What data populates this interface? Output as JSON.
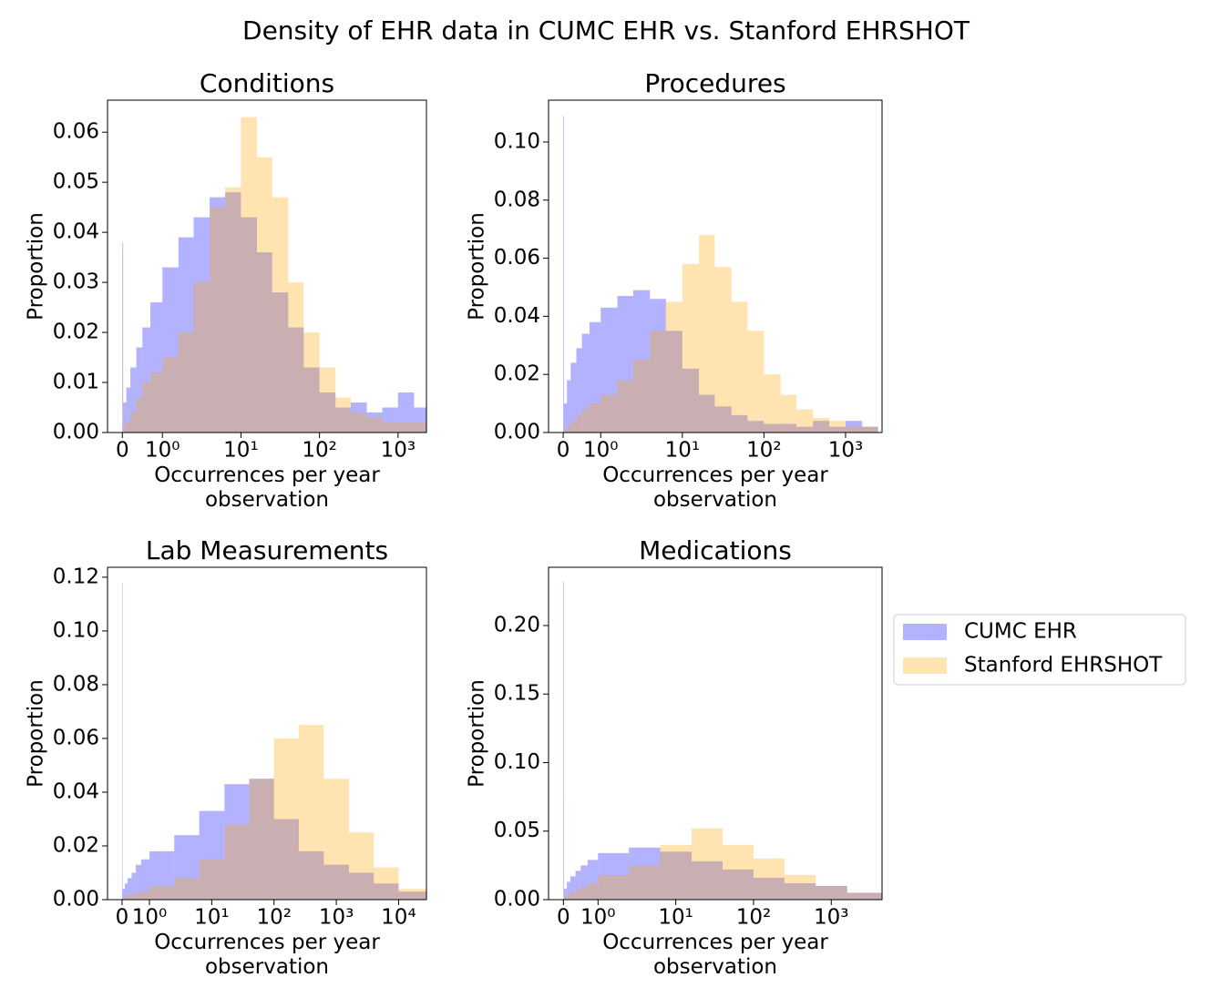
{
  "title": "Density of EHR data in CUMC EHR vs. Stanford EHRSHOT",
  "legend_position": "right",
  "chart_data": [
    {
      "type": "histogram",
      "title": "Conditions",
      "xlabel": "Occurrences per year\nobservation",
      "ylabel": "Proportion",
      "xscale": "symlog",
      "linthresh": 1,
      "linscale": 0.51,
      "xlim": [
        -0.37,
        2300
      ],
      "ylim": [
        0,
        0.0664
      ],
      "xticks": [
        0,
        {
          "value": 1,
          "label": "10⁰"
        },
        {
          "value": 10,
          "label": "10¹"
        },
        {
          "value": 100,
          "label": "10²"
        },
        {
          "value": 1000,
          "label": "10³"
        }
      ],
      "yticks": [
        {
          "value": 0,
          "label": "0.00"
        },
        {
          "value": 0.01,
          "label": "0.01"
        },
        {
          "value": 0.02,
          "label": "0.02"
        },
        {
          "value": 0.03,
          "label": "0.03"
        },
        {
          "value": 0.04,
          "label": "0.04"
        },
        {
          "value": 0.05,
          "label": "0.05"
        },
        {
          "value": 0.06,
          "label": "0.06"
        }
      ],
      "bins": [
        0,
        0.02,
        0.1,
        0.2,
        0.35,
        0.5,
        0.7,
        1,
        1.6,
        2.5,
        4,
        6.3,
        10,
        16,
        25,
        40,
        63,
        100,
        160,
        250,
        400,
        630,
        1000,
        1600,
        2300
      ],
      "series": [
        {
          "name": "CUMC EHR",
          "color": "#0000ff",
          "values": [
            0.038,
            0.006,
            0.009,
            0.013,
            0.017,
            0.021,
            0.026,
            0.033,
            0.039,
            0.043,
            0.047,
            0.048,
            0.043,
            0.036,
            0.028,
            0.021,
            0.013,
            0.008,
            0.005,
            0.006,
            0.004,
            0.005,
            0.008,
            0.005
          ]
        },
        {
          "name": "Stanford EHRSHOT",
          "color": "#ffa500",
          "values": [
            0.036,
            0.001,
            0.002,
            0.004,
            0.007,
            0.01,
            0.012,
            0.015,
            0.02,
            0.03,
            0.045,
            0.049,
            0.063,
            0.055,
            0.047,
            0.03,
            0.02,
            0.013,
            0.007,
            0.004,
            0.003,
            0.002,
            0.002,
            0.002
          ]
        }
      ]
    },
    {
      "type": "histogram",
      "title": "Procedures",
      "xlabel": "Occurrences per year\nobservation",
      "ylabel": "Proportion",
      "xscale": "symlog",
      "linthresh": 1,
      "linscale": 0.46,
      "xlim": [
        -0.39,
        2800
      ],
      "ylim": [
        0,
        0.1144
      ],
      "xticks": [
        0,
        {
          "value": 1,
          "label": "10⁰"
        },
        {
          "value": 10,
          "label": "10¹"
        },
        {
          "value": 100,
          "label": "10²"
        },
        {
          "value": 1000,
          "label": "10³"
        }
      ],
      "yticks": [
        {
          "value": 0,
          "label": "0.00"
        },
        {
          "value": 0.02,
          "label": "0.02"
        },
        {
          "value": 0.04,
          "label": "0.04"
        },
        {
          "value": 0.06,
          "label": "0.06"
        },
        {
          "value": 0.08,
          "label": "0.08"
        },
        {
          "value": 0.1,
          "label": "0.10"
        }
      ],
      "bins": [
        0,
        0.02,
        0.1,
        0.2,
        0.35,
        0.5,
        0.7,
        1,
        1.6,
        2.5,
        4,
        6.3,
        10,
        16,
        25,
        40,
        63,
        100,
        160,
        250,
        400,
        630,
        1000,
        1600,
        2500
      ],
      "series": [
        {
          "name": "CUMC EHR",
          "color": "#0000ff",
          "values": [
            0.109,
            0.01,
            0.018,
            0.024,
            0.029,
            0.034,
            0.038,
            0.043,
            0.047,
            0.049,
            0.046,
            0.035,
            0.022,
            0.013,
            0.009,
            0.006,
            0.004,
            0.003,
            0.003,
            0.002,
            0.004,
            0.002,
            0.004,
            0.002
          ]
        },
        {
          "name": "Stanford EHRSHOT",
          "color": "#ffa500",
          "values": [
            0.005,
            0.001,
            0.002,
            0.004,
            0.006,
            0.008,
            0.01,
            0.013,
            0.018,
            0.025,
            0.035,
            0.045,
            0.058,
            0.068,
            0.057,
            0.045,
            0.035,
            0.02,
            0.013,
            0.008,
            0.005,
            0.004,
            0.002,
            0.002
          ]
        }
      ]
    },
    {
      "type": "histogram",
      "title": "Lab Measurements",
      "xlabel": "Occurrences per year\nobservation",
      "ylabel": "Proportion",
      "xscale": "symlog",
      "linthresh": 1,
      "linscale": 0.44,
      "xlim": [
        -0.53,
        28000
      ],
      "ylim": [
        0,
        0.1237
      ],
      "xticks": [
        0,
        {
          "value": 1,
          "label": "10⁰"
        },
        {
          "value": 10,
          "label": "10¹"
        },
        {
          "value": 100,
          "label": "10²"
        },
        {
          "value": 1000,
          "label": "10³"
        },
        {
          "value": 10000,
          "label": "10⁴"
        }
      ],
      "yticks": [
        {
          "value": 0,
          "label": "0.00"
        },
        {
          "value": 0.02,
          "label": "0.02"
        },
        {
          "value": 0.04,
          "label": "0.04"
        },
        {
          "value": 0.06,
          "label": "0.06"
        },
        {
          "value": 0.08,
          "label": "0.08"
        },
        {
          "value": 0.1,
          "label": "0.10"
        },
        {
          "value": 0.12,
          "label": "0.12"
        }
      ],
      "bins": [
        0,
        0.02,
        0.1,
        0.2,
        0.35,
        0.5,
        0.7,
        1,
        2.5,
        6.3,
        16,
        40,
        100,
        250,
        630,
        1600,
        4000,
        10000,
        28000
      ],
      "series": [
        {
          "name": "CUMC EHR",
          "color": "#0000ff",
          "values": [
            0.118,
            0.004,
            0.006,
            0.008,
            0.01,
            0.013,
            0.015,
            0.018,
            0.024,
            0.033,
            0.043,
            0.045,
            0.03,
            0.018,
            0.013,
            0.01,
            0.006,
            0.003
          ]
        },
        {
          "name": "Stanford EHRSHOT",
          "color": "#ffa500",
          "values": [
            0,
            0.001,
            0.001,
            0.002,
            0.002,
            0.003,
            0.003,
            0.005,
            0.008,
            0.015,
            0.028,
            0.045,
            0.06,
            0.065,
            0.045,
            0.025,
            0.012,
            0.004
          ]
        }
      ]
    },
    {
      "type": "histogram",
      "title": "Medications",
      "xlabel": "Occurrences per year\nobservation",
      "ylabel": "Proportion",
      "xscale": "symlog",
      "linthresh": 1,
      "linscale": 0.445,
      "xlim": [
        -0.43,
        4500
      ],
      "ylim": [
        0,
        0.2425
      ],
      "xticks": [
        0,
        {
          "value": 1,
          "label": "10⁰"
        },
        {
          "value": 10,
          "label": "10¹"
        },
        {
          "value": 100,
          "label": "10²"
        },
        {
          "value": 1000,
          "label": "10³"
        }
      ],
      "yticks": [
        {
          "value": 0,
          "label": "0.00"
        },
        {
          "value": 0.05,
          "label": "0.05"
        },
        {
          "value": 0.1,
          "label": "0.10"
        },
        {
          "value": 0.15,
          "label": "0.15"
        },
        {
          "value": 0.2,
          "label": "0.20"
        }
      ],
      "bins": [
        0,
        0.02,
        0.1,
        0.2,
        0.35,
        0.5,
        0.7,
        1,
        2.5,
        6.3,
        16,
        40,
        100,
        250,
        630,
        1600,
        4500
      ],
      "series": [
        {
          "name": "CUMC EHR",
          "color": "#0000ff",
          "values": [
            0.232,
            0.008,
            0.013,
            0.017,
            0.021,
            0.025,
            0.029,
            0.034,
            0.038,
            0.035,
            0.028,
            0.022,
            0.016,
            0.012,
            0.01,
            0.005
          ]
        },
        {
          "name": "Stanford EHRSHOT",
          "color": "#ffa500",
          "values": [
            0.073,
            0.002,
            0.003,
            0.005,
            0.007,
            0.009,
            0.012,
            0.018,
            0.025,
            0.04,
            0.052,
            0.04,
            0.03,
            0.018,
            0.01,
            0.005
          ]
        }
      ]
    }
  ]
}
